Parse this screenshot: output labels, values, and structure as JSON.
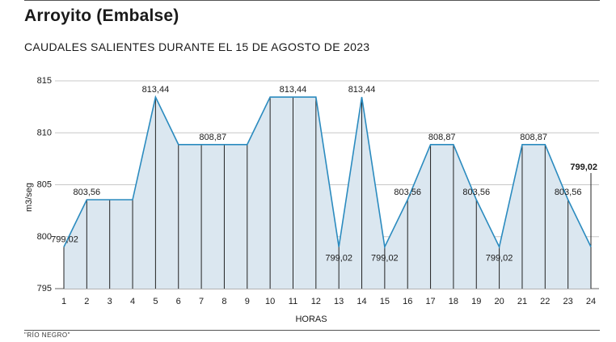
{
  "header": {
    "title": "Arroyito (Embalse)",
    "subtitle": "CAUDALES SALIENTES DURANTE EL 15 DE AGOSTO DE 2023"
  },
  "footer": {
    "source": "\"RÍO NEGRO\""
  },
  "colors": {
    "line": "#2b8bbf",
    "fill": "#dbe7f0",
    "grid": "#c8c8c8",
    "drop": "#222222"
  },
  "chart_data": {
    "type": "area",
    "xlabel": "HORAS",
    "ylabel": "m3/seg",
    "x": [
      1,
      2,
      3,
      4,
      5,
      6,
      7,
      8,
      9,
      10,
      11,
      12,
      13,
      14,
      15,
      16,
      17,
      18,
      19,
      20,
      21,
      22,
      23,
      24
    ],
    "values": [
      799.02,
      803.56,
      803.56,
      803.56,
      813.44,
      808.87,
      808.87,
      808.87,
      808.87,
      813.44,
      813.44,
      813.44,
      799.02,
      813.44,
      799.02,
      803.56,
      808.87,
      808.87,
      803.56,
      799.02,
      808.87,
      808.87,
      803.56,
      799.02
    ],
    "ylim": [
      795,
      815
    ],
    "yticks": [
      795,
      800,
      805,
      810,
      815
    ],
    "grid": true,
    "data_labels": [
      {
        "x": 1,
        "text": "799,02",
        "pos": "above"
      },
      {
        "x": 2,
        "text": "803,56",
        "pos": "above"
      },
      {
        "x": 5,
        "text": "813,44",
        "pos": "above"
      },
      {
        "x": 7.5,
        "text": "808,87",
        "pos": "above"
      },
      {
        "x": 11,
        "text": "813,44",
        "pos": "above"
      },
      {
        "x": 13,
        "text": "799,02",
        "pos": "below"
      },
      {
        "x": 14,
        "text": "813,44",
        "pos": "above"
      },
      {
        "x": 15,
        "text": "799,02",
        "pos": "below"
      },
      {
        "x": 16,
        "text": "803,56",
        "pos": "above"
      },
      {
        "x": 17.5,
        "text": "808,87",
        "pos": "above"
      },
      {
        "x": 19,
        "text": "803,56",
        "pos": "above"
      },
      {
        "x": 20,
        "text": "799,02",
        "pos": "below"
      },
      {
        "x": 21.5,
        "text": "808,87",
        "pos": "above"
      },
      {
        "x": 23,
        "text": "803,56",
        "pos": "above"
      },
      {
        "x": 24,
        "text": "799,02",
        "pos": "top-bold"
      }
    ]
  }
}
